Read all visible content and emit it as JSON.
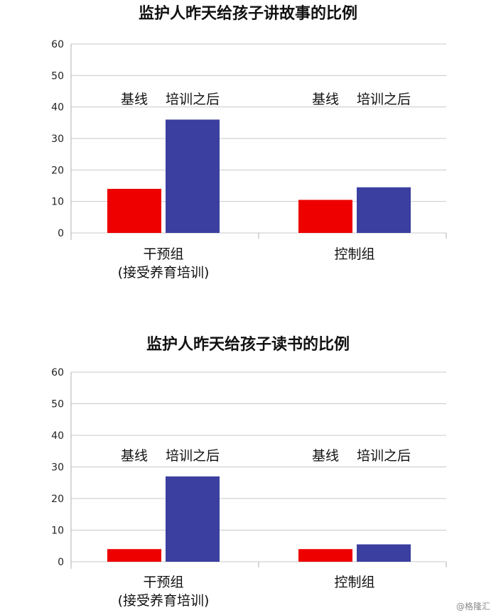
{
  "watermark": "@格隆汇",
  "chart_data": [
    {
      "type": "bar",
      "title": "监护人昨天给孩子讲故事的比例",
      "categories": [
        "干预组\n(接受养育培训)",
        "控制组"
      ],
      "series": [
        {
          "name": "基线",
          "values": [
            14,
            10.5
          ]
        },
        {
          "name": "培训之后",
          "values": [
            36,
            14.5
          ]
        }
      ],
      "colors": [
        "#ee0000",
        "#3b3fa0"
      ],
      "ylim": [
        0,
        60
      ],
      "yticks": [
        0,
        10,
        20,
        30,
        40,
        50,
        60
      ],
      "grid": true,
      "legend": "bar labels above bars"
    },
    {
      "type": "bar",
      "title": "监护人昨天给孩子读书的比例",
      "categories": [
        "干预组\n(接受养育培训)",
        "控制组"
      ],
      "series": [
        {
          "name": "基线",
          "values": [
            4,
            4
          ]
        },
        {
          "name": "培训之后",
          "values": [
            27,
            5.5
          ]
        }
      ],
      "colors": [
        "#ee0000",
        "#3b3fa0"
      ],
      "ylim": [
        0,
        60
      ],
      "yticks": [
        0,
        10,
        20,
        30,
        40,
        50,
        60
      ],
      "grid": true,
      "legend": "bar labels above bars"
    }
  ]
}
